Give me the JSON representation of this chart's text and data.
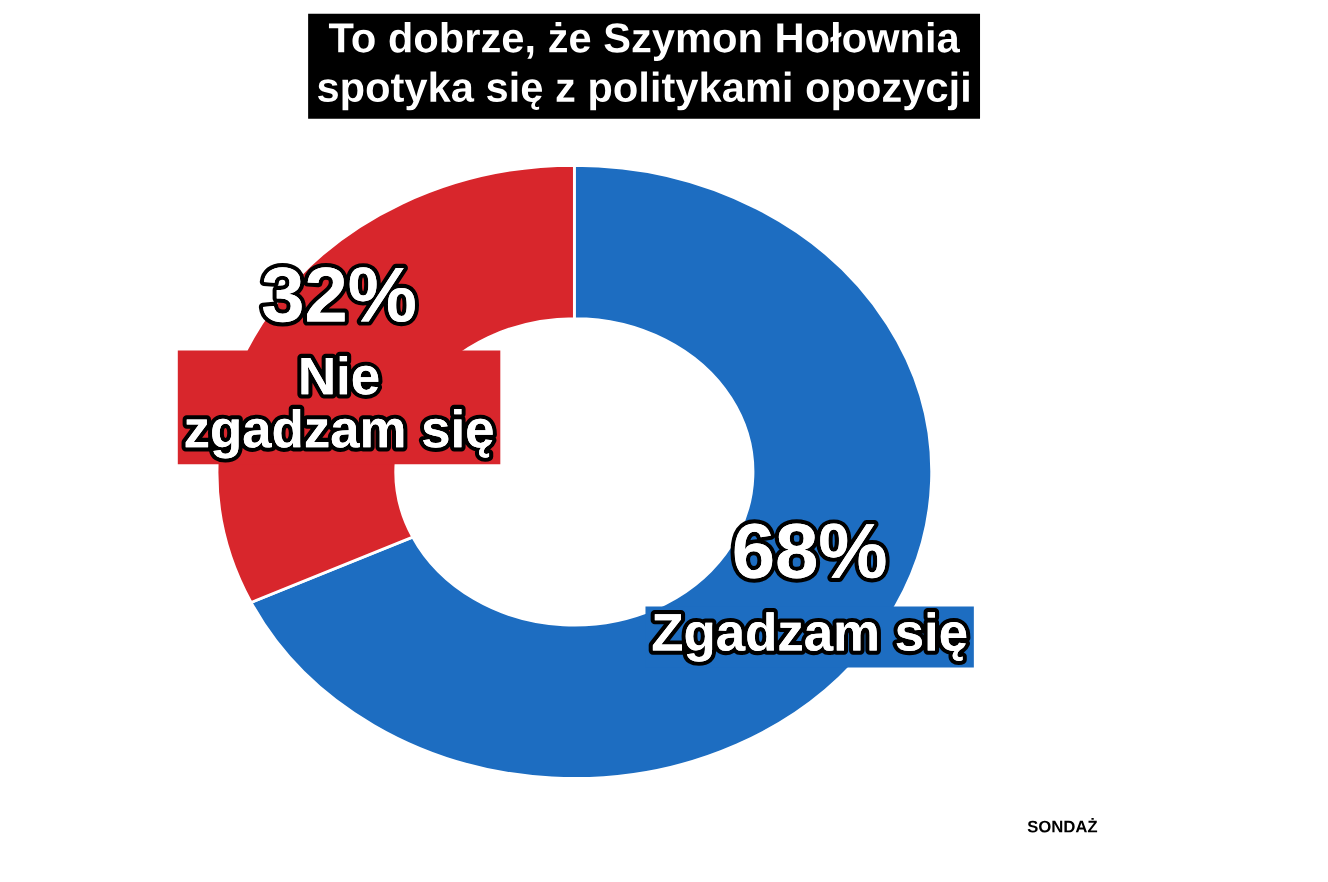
{
  "chart_data": {
    "type": "donut",
    "title": "To dobrze, że Szymon Hołownia\nspotyka się z politykami opozycji",
    "categories": [
      "Zgadzam się",
      "Nie\nzgadzam się"
    ],
    "values": [
      68,
      32
    ],
    "colors": [
      "#1d6dc1",
      "#d8262c"
    ],
    "value_labels": [
      "68%",
      "32%"
    ],
    "annotations": [
      "SONDAŻ"
    ]
  }
}
